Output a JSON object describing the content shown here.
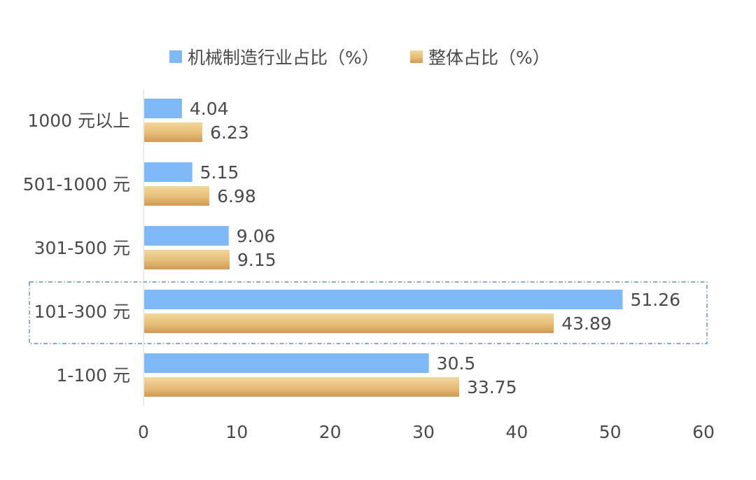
{
  "chart_data": {
    "type": "bar",
    "orientation": "horizontal",
    "categories": [
      "1000 元以上",
      "501-1000 元",
      "301-500 元",
      "101-300 元",
      "1-100 元"
    ],
    "series": [
      {
        "name": "机械制造行业占比（%）",
        "values": [
          4.04,
          5.15,
          9.06,
          51.26,
          30.5
        ]
      },
      {
        "name": "整体占比（%）",
        "values": [
          6.23,
          6.98,
          9.15,
          43.89,
          33.75
        ]
      }
    ],
    "xlim": [
      0,
      60
    ],
    "xticks": [
      "0",
      "10",
      "20",
      "30",
      "40",
      "50",
      "60"
    ],
    "legend_position": "top",
    "highlighted_category": "101-300 元",
    "grid": false
  },
  "colors": {
    "series_1": "#7fb8f7",
    "series_2_light": "#f1d394",
    "series_2_dark": "#d7a25c",
    "highlight_border": "#4a78a8",
    "axis": "#d9d9d9",
    "text": "#4a4a4a"
  }
}
